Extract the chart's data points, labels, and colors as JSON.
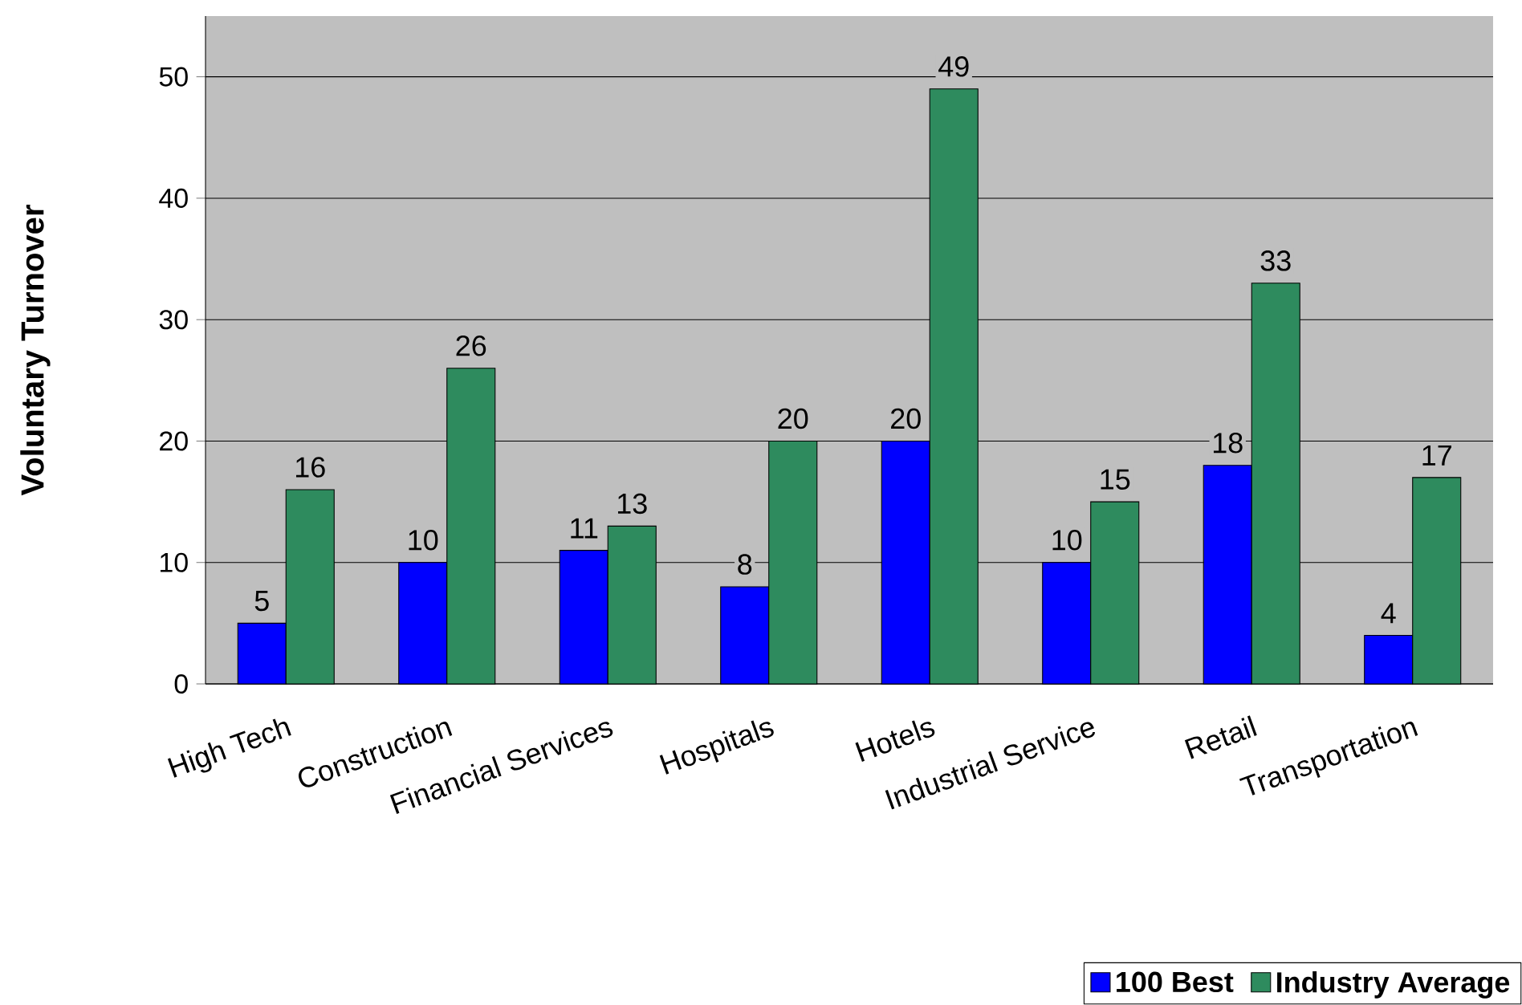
{
  "chart_data": {
    "type": "bar",
    "ylabel": "Voluntary Turnover",
    "categories": [
      "High Tech",
      "Construction",
      "Financial Services",
      "Hospitals",
      "Hotels",
      "Industrial Service",
      "Retail",
      "Transportation"
    ],
    "series": [
      {
        "name": "100 Best",
        "color": "#0000ff",
        "values": [
          5,
          10,
          11,
          8,
          20,
          10,
          18,
          4
        ]
      },
      {
        "name": "Industry Average",
        "color": "#2e8b5e",
        "values": [
          16,
          26,
          13,
          20,
          49,
          15,
          33,
          17
        ]
      }
    ],
    "ylim": [
      0,
      55
    ],
    "yticks": [
      0,
      10,
      20,
      30,
      40,
      50
    ],
    "grid": "y",
    "legend": "bottom right",
    "data_labels": true
  }
}
